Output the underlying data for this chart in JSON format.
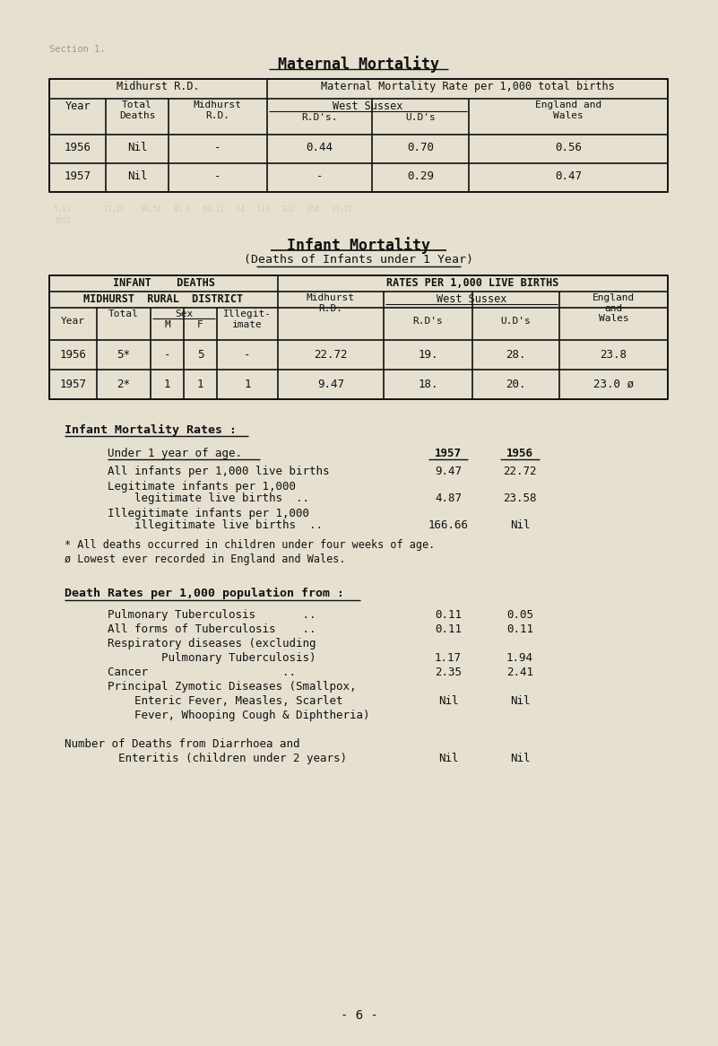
{
  "bg_color": "#e5e0d0",
  "text_color": "#111111",
  "page_title": "Maternal Mortality",
  "section_label": "Section 1.",
  "page_number": "- 6 -",
  "mat_table": {
    "rows": [
      [
        "1956",
        "Nil",
        "-",
        "0.44",
        "0.70",
        "0.56"
      ],
      [
        "1957",
        "Nil",
        "-",
        "-",
        "0.29",
        "0.47"
      ]
    ]
  },
  "inf_title1": "Infant Mortality",
  "inf_title2": "(Deaths of Infants under 1 Year)",
  "inf_table": {
    "rows": [
      [
        "1956",
        "5*",
        "-",
        "5",
        "-",
        "22.72",
        "19.",
        "28.",
        "23.8"
      ],
      [
        "1957",
        "2*",
        "1",
        "1",
        "1",
        "9.47",
        "18.",
        "20.",
        "23.0 ø"
      ]
    ]
  },
  "imr_rows": [
    [
      "All infants per 1,000 live births",
      "9.47",
      "22.72"
    ],
    [
      "Legitimate infants per 1,000",
      "",
      ""
    ],
    [
      "    legitimate live births  ..",
      "4.87",
      "23.58"
    ],
    [
      "Illegitimate infants per 1,000",
      "",
      ""
    ],
    [
      "    illegitimate live births  ..",
      "166.66",
      "Nil"
    ]
  ],
  "notes": [
    "* All deaths occurred in children under four weeks of age.",
    "ø Lowest ever recorded in England and Wales."
  ],
  "death_rates_title": "Death Rates per 1,000 population from :",
  "dr_rows": [
    [
      "    Pulmonary Tuberculosis       ..",
      "0.11",
      "0.05"
    ],
    [
      "    All forms of Tuberculosis    ..",
      "0.11",
      "0.11"
    ],
    [
      "    Respiratory diseases (excluding",
      "",
      ""
    ],
    [
      "            Pulmonary Tuberculosis)",
      "1.17",
      "1.94"
    ],
    [
      "    Cancer                    ..",
      "2.35",
      "2.41"
    ],
    [
      "    Principal Zymotic Diseases (Smallpox,",
      "",
      ""
    ],
    [
      "        Enteric Fever, Measles, Scarlet",
      "Nil",
      "Nil"
    ],
    [
      "        Fever, Whooping Cough & Diphtheria)",
      "",
      ""
    ]
  ],
  "diarrhoea_lines": [
    "Number of Deaths from Diarrhoea and",
    "        Enteritis (children under 2 years)"
  ],
  "diarrhoea_vals": [
    "Nil",
    "Nil"
  ]
}
